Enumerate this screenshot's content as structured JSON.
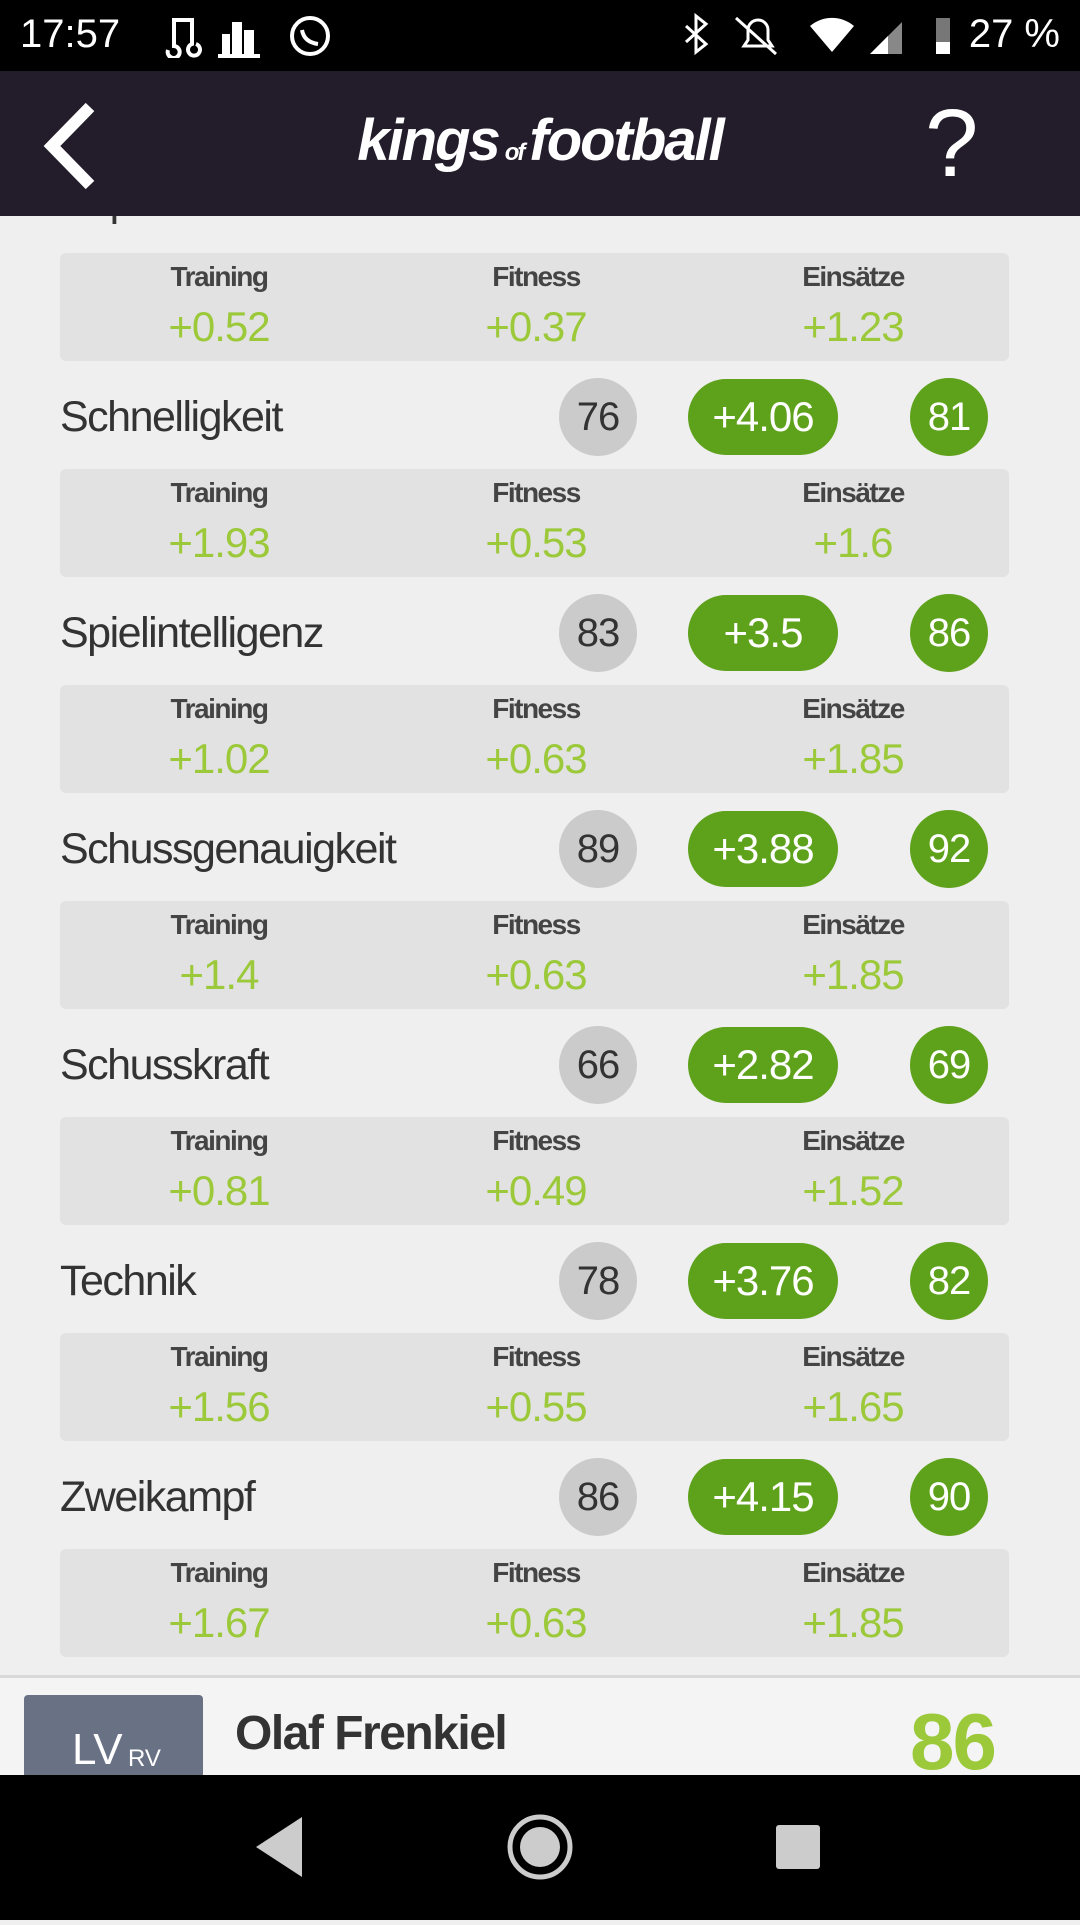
{
  "status_bar": {
    "time": "17:57",
    "battery": "27 %"
  },
  "header": {
    "logo_left": "kings",
    "logo_mid": "of",
    "logo_right": "football",
    "help": "?"
  },
  "attributes": [
    {
      "name": "Kopfball",
      "breakdown": [
        {
          "label": "Training",
          "value": "+0.52"
        },
        {
          "label": "Fitness",
          "value": "+0.37"
        },
        {
          "label": "Einsätze",
          "value": "+1.23"
        }
      ]
    },
    {
      "name": "Schnelligkeit",
      "base": "76",
      "gain": "+4.06",
      "total": "81",
      "breakdown": [
        {
          "label": "Training",
          "value": "+1.93"
        },
        {
          "label": "Fitness",
          "value": "+0.53"
        },
        {
          "label": "Einsätze",
          "value": "+1.6"
        }
      ]
    },
    {
      "name": "Spielintelligenz",
      "base": "83",
      "gain": "+3.5",
      "total": "86",
      "breakdown": [
        {
          "label": "Training",
          "value": "+1.02"
        },
        {
          "label": "Fitness",
          "value": "+0.63"
        },
        {
          "label": "Einsätze",
          "value": "+1.85"
        }
      ]
    },
    {
      "name": "Schussgenauigkeit",
      "base": "89",
      "gain": "+3.88",
      "total": "92",
      "breakdown": [
        {
          "label": "Training",
          "value": "+1.4"
        },
        {
          "label": "Fitness",
          "value": "+0.63"
        },
        {
          "label": "Einsätze",
          "value": "+1.85"
        }
      ]
    },
    {
      "name": "Schusskraft",
      "base": "66",
      "gain": "+2.82",
      "total": "69",
      "breakdown": [
        {
          "label": "Training",
          "value": "+0.81"
        },
        {
          "label": "Fitness",
          "value": "+0.49"
        },
        {
          "label": "Einsätze",
          "value": "+1.52"
        }
      ]
    },
    {
      "name": "Technik",
      "base": "78",
      "gain": "+3.76",
      "total": "82",
      "breakdown": [
        {
          "label": "Training",
          "value": "+1.56"
        },
        {
          "label": "Fitness",
          "value": "+0.55"
        },
        {
          "label": "Einsätze",
          "value": "+1.65"
        }
      ]
    },
    {
      "name": "Zweikampf",
      "base": "86",
      "gain": "+4.15",
      "total": "90",
      "breakdown": [
        {
          "label": "Training",
          "value": "+1.67"
        },
        {
          "label": "Fitness",
          "value": "+0.63"
        },
        {
          "label": "Einsätze",
          "value": "+1.85"
        }
      ]
    }
  ],
  "player": {
    "position": "LV",
    "secondary": "RV",
    "name": "Olaf Frenkiel",
    "rating": "86"
  }
}
